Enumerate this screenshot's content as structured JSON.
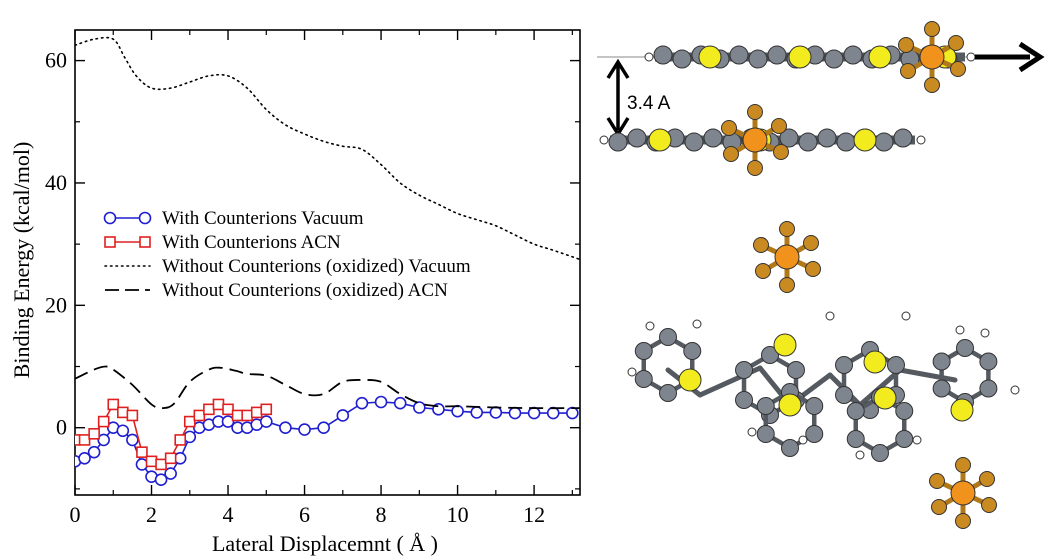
{
  "chart_data": {
    "type": "line",
    "xlabel": "Lateral Displacemnt ( Å )",
    "ylabel": "Binding Energy (kcal/mol)",
    "xlim": [
      0,
      13.2
    ],
    "ylim": [
      -11,
      65
    ],
    "x_ticks": [
      0,
      2,
      4,
      6,
      8,
      10,
      12
    ],
    "y_ticks": [
      0,
      20,
      40,
      60
    ],
    "x_tick_labels": [
      "0",
      "2",
      "4",
      "6",
      "8",
      "10",
      "12"
    ],
    "y_tick_labels": [
      "0",
      "20",
      "40",
      "60"
    ],
    "legend_position": "left-middle",
    "series": [
      {
        "name": "With Counterions Vacuum",
        "style": "solid-line-open-circles",
        "color": "#1f1fd0",
        "x": [
          0,
          0.25,
          0.5,
          0.75,
          1.0,
          1.25,
          1.5,
          1.75,
          2.0,
          2.25,
          2.5,
          2.75,
          3.0,
          3.25,
          3.5,
          3.75,
          4.0,
          4.25,
          4.5,
          4.75,
          5.0,
          5.5,
          6.0,
          6.5,
          7.0,
          7.5,
          8.0,
          8.5,
          9.0,
          9.5,
          10.0,
          10.5,
          11.0,
          11.5,
          12.0,
          12.5,
          13.0
        ],
        "y": [
          -5.5,
          -5.0,
          -4.0,
          -2.0,
          0.0,
          -0.5,
          -2.0,
          -6.0,
          -8.0,
          -8.5,
          -7.5,
          -5.0,
          -1.5,
          0.0,
          0.5,
          1.0,
          1.0,
          0.0,
          0.0,
          0.5,
          1.0,
          0.0,
          -0.3,
          0.0,
          2.0,
          4.0,
          4.2,
          4.0,
          3.3,
          3.0,
          2.7,
          2.5,
          2.5,
          2.4,
          2.4,
          2.4,
          2.4
        ]
      },
      {
        "name": "With Counterions ACN",
        "style": "solid-line-open-squares",
        "color": "#e02020",
        "x": [
          0,
          0.25,
          0.5,
          0.75,
          1.0,
          1.25,
          1.5,
          1.75,
          2.0,
          2.25,
          2.5,
          2.75,
          3.0,
          3.25,
          3.5,
          3.75,
          4.0,
          4.25,
          4.5,
          4.75,
          5.0
        ],
        "y": [
          -2.0,
          -2.0,
          -1.0,
          1.0,
          3.8,
          2.5,
          2.0,
          -4.0,
          -5.5,
          -6.0,
          -5.0,
          -2.0,
          1.0,
          2.0,
          3.0,
          3.8,
          3.0,
          2.0,
          2.0,
          2.5,
          3.0
        ]
      },
      {
        "name": "Without Counterions (oxidized) Vacuum",
        "style": "dotted",
        "color": "#000000",
        "x": [
          0,
          0.5,
          1.0,
          1.3,
          1.6,
          2.0,
          2.5,
          3.0,
          3.5,
          4.0,
          4.5,
          5.0,
          5.5,
          6.0,
          6.5,
          7.0,
          7.5,
          8.0,
          8.5,
          9.0,
          9.5,
          10.0,
          10.5,
          11.0,
          11.5,
          12.0,
          12.5,
          13.2
        ],
        "y": [
          62.5,
          63.5,
          63.5,
          60.5,
          57.5,
          55.5,
          55.5,
          56.5,
          57.5,
          57.5,
          55.5,
          52.0,
          49.5,
          48.0,
          46.8,
          46.0,
          45.5,
          43.0,
          40.0,
          38.0,
          36.5,
          35.0,
          34.0,
          33.0,
          31.5,
          30.0,
          29.0,
          27.5
        ]
      },
      {
        "name": "Without Counterions (oxidized) ACN",
        "style": "dashed",
        "color": "#000000",
        "x": [
          0,
          0.5,
          0.8,
          1.0,
          1.5,
          2.0,
          2.3,
          2.6,
          3.0,
          3.5,
          3.8,
          4.2,
          4.5,
          5.0,
          5.5,
          6.0,
          6.5,
          7.0,
          7.5,
          8.0,
          8.5,
          9.0,
          9.5,
          10.0,
          11.0,
          12.0,
          13.2
        ],
        "y": [
          8.0,
          9.5,
          10.0,
          9.5,
          7.0,
          3.8,
          3.2,
          4.0,
          7.5,
          9.5,
          9.8,
          9.3,
          8.8,
          8.5,
          7.0,
          5.5,
          5.5,
          7.5,
          7.8,
          7.5,
          5.5,
          4.0,
          3.5,
          3.5,
          3.3,
          3.2,
          3.2
        ]
      }
    ]
  },
  "figure": {
    "distance_label": "3.4 A",
    "colors": {
      "carbon": "#7e858f",
      "sulfur": "#f2ec1e",
      "hydrogen": "#ffffff",
      "phosphorus": "#f0921c",
      "fluorine": "#c98a22",
      "bond": "#555a60"
    }
  }
}
